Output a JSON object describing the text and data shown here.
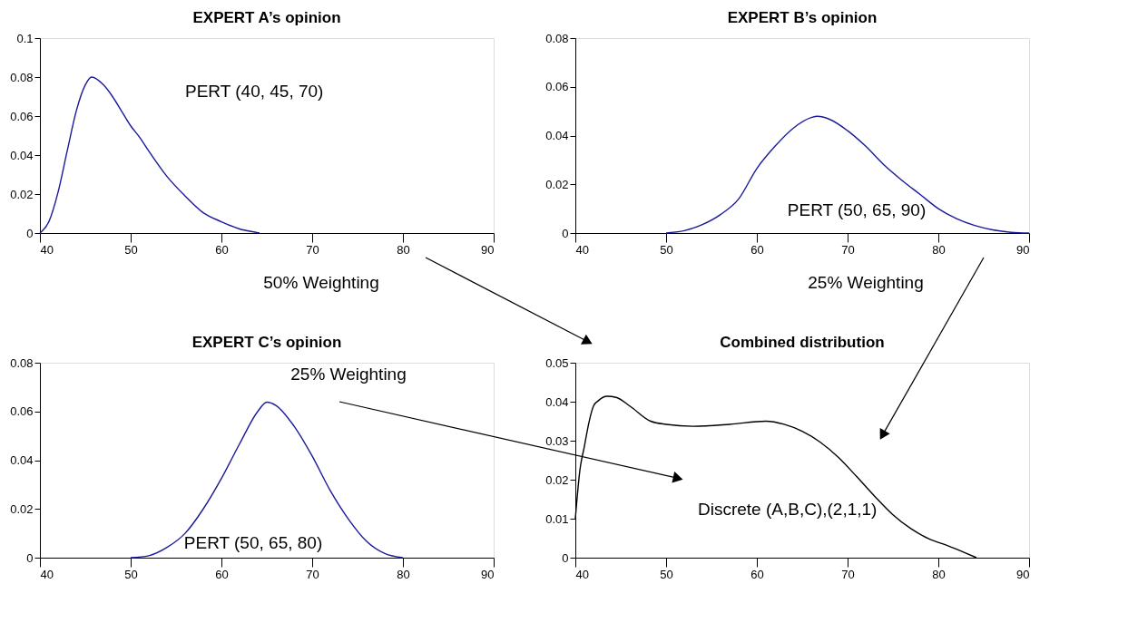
{
  "chart_data": [
    {
      "type": "line",
      "title": "EXPERT A’s opinion",
      "xlim": [
        40,
        90
      ],
      "xticks": [
        40,
        50,
        60,
        70,
        80,
        90
      ],
      "ylim": [
        0,
        0.1
      ],
      "yticks": [
        0,
        0.02,
        0.04,
        0.06,
        0.08,
        0.1
      ],
      "grid": false,
      "annotations": [
        "50% Weighting"
      ],
      "series": [
        {
          "name": "PERT (40, 45, 70)",
          "color": "#1a1a99",
          "x": [
            40,
            41,
            42,
            43,
            44,
            45,
            45.7,
            47,
            48,
            49,
            50,
            51,
            52,
            54,
            56,
            58,
            60,
            62,
            64,
            64.2
          ],
          "values": [
            0,
            0.006,
            0.021,
            0.042,
            0.0625,
            0.076,
            0.08,
            0.076,
            0.07,
            0.0625,
            0.055,
            0.049,
            0.042,
            0.029,
            0.019,
            0.0104,
            0.0058,
            0.0021,
            0.0002,
            0
          ]
        }
      ]
    },
    {
      "type": "line",
      "title": "EXPERT B’s opinion",
      "xlim": [
        40,
        90
      ],
      "xticks": [
        40,
        50,
        60,
        70,
        80,
        90
      ],
      "ylim": [
        0,
        0.08
      ],
      "yticks": [
        0,
        0.02,
        0.04,
        0.06,
        0.08
      ],
      "grid": false,
      "annotations": [
        "25% Weighting"
      ],
      "series": [
        {
          "name": "PERT (50, 65, 90)",
          "color": "#1a1a99",
          "x": [
            50,
            52,
            54,
            56,
            58,
            60,
            62,
            64,
            66,
            66.7,
            68,
            70,
            72,
            74,
            76,
            78,
            80,
            82,
            84,
            86,
            88,
            90
          ],
          "values": [
            0,
            0.001,
            0.0035,
            0.0076,
            0.014,
            0.0265,
            0.0356,
            0.043,
            0.0474,
            0.0479,
            0.0467,
            0.042,
            0.0356,
            0.028,
            0.0216,
            0.0158,
            0.01,
            0.0059,
            0.0031,
            0.0013,
            0.0003,
            0
          ]
        }
      ]
    },
    {
      "type": "line",
      "title": "EXPERT C’s opinion",
      "xlim": [
        40,
        90
      ],
      "xticks": [
        40,
        50,
        60,
        70,
        80,
        90
      ],
      "ylim": [
        0,
        0.08
      ],
      "yticks": [
        0,
        0.02,
        0.04,
        0.06,
        0.08
      ],
      "grid": false,
      "annotations": [
        "25% Weighting"
      ],
      "series": [
        {
          "name": "PERT (50, 65, 80)",
          "color": "#1a1a99",
          "x": [
            50,
            52,
            54,
            56,
            58,
            60,
            62,
            64,
            65,
            66,
            68,
            70,
            72,
            74,
            76,
            78,
            80
          ],
          "values": [
            0,
            0.0008,
            0.0042,
            0.01,
            0.02,
            0.0325,
            0.0467,
            0.06,
            0.0638,
            0.0625,
            0.054,
            0.0417,
            0.0275,
            0.0158,
            0.0067,
            0.0017,
            0
          ]
        }
      ]
    },
    {
      "type": "line",
      "title": "Combined distribution",
      "xlim": [
        40,
        90
      ],
      "xticks": [
        40,
        50,
        60,
        70,
        80,
        90
      ],
      "ylim": [
        0,
        0.05
      ],
      "yticks": [
        0,
        0.01,
        0.02,
        0.03,
        0.04,
        0.05
      ],
      "grid": false,
      "series": [
        {
          "name": "Discrete (A,B,C),(2,1,1)",
          "color": "#000000",
          "x": [
            40,
            40.5,
            41,
            41.5,
            42,
            42.5,
            43.5,
            44.5,
            46,
            48.3,
            50,
            53,
            57,
            61,
            63,
            65,
            67,
            69,
            71,
            73,
            75,
            77,
            79,
            81,
            83,
            84.2
          ],
          "values": [
            0.01,
            0.0224,
            0.0286,
            0.0347,
            0.0389,
            0.0402,
            0.0414,
            0.0411,
            0.0389,
            0.035,
            0.0342,
            0.0337,
            0.0342,
            0.035,
            0.0342,
            0.0324,
            0.0296,
            0.0257,
            0.0208,
            0.0157,
            0.011,
            0.0074,
            0.0048,
            0.0031,
            0.0012,
            0
          ]
        }
      ]
    }
  ]
}
